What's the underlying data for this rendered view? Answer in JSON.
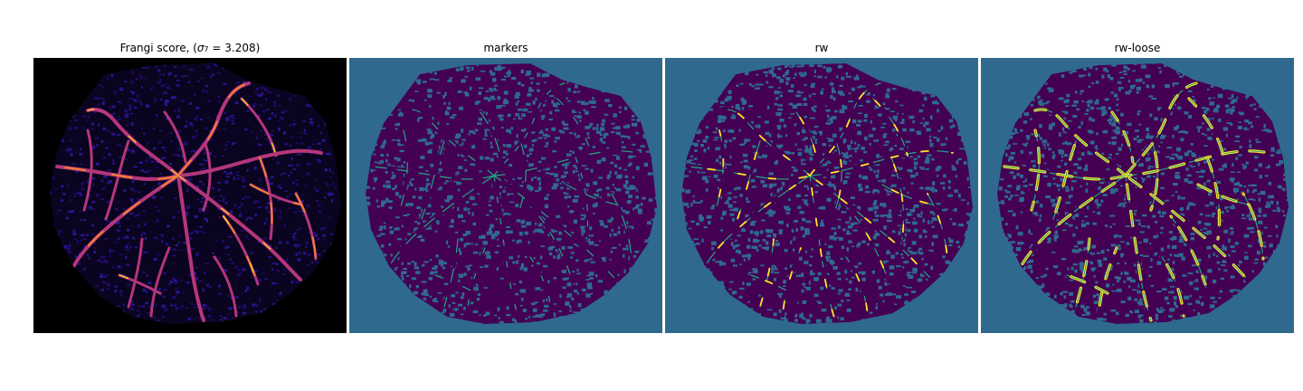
{
  "figure": {
    "panels": [
      {
        "id": "frangi",
        "title_prefix": "Frangi score, (",
        "title_sigma": "σ",
        "title_sub": "7",
        "title_suffix": " = 3.208)",
        "background": "#000000",
        "tissue_color": "#1f0c6b",
        "vessel_colors": [
          "#b5367a",
          "#f07f34",
          "#fcd225"
        ]
      },
      {
        "id": "markers",
        "title": "markers",
        "background": "#2f6a8e",
        "tissue_color": "#440154",
        "marker_color": "#22a884"
      },
      {
        "id": "rw",
        "title": "rw",
        "background": "#2f6a8e",
        "tissue_color": "#440154",
        "marker_color": "#22a884",
        "highlight_color": "#fde725"
      },
      {
        "id": "rw-loose",
        "title": "rw-loose",
        "background": "#2f6a8e",
        "tissue_color": "#440154",
        "marker_color": "#22a884",
        "highlight_color": "#fde725"
      }
    ]
  }
}
